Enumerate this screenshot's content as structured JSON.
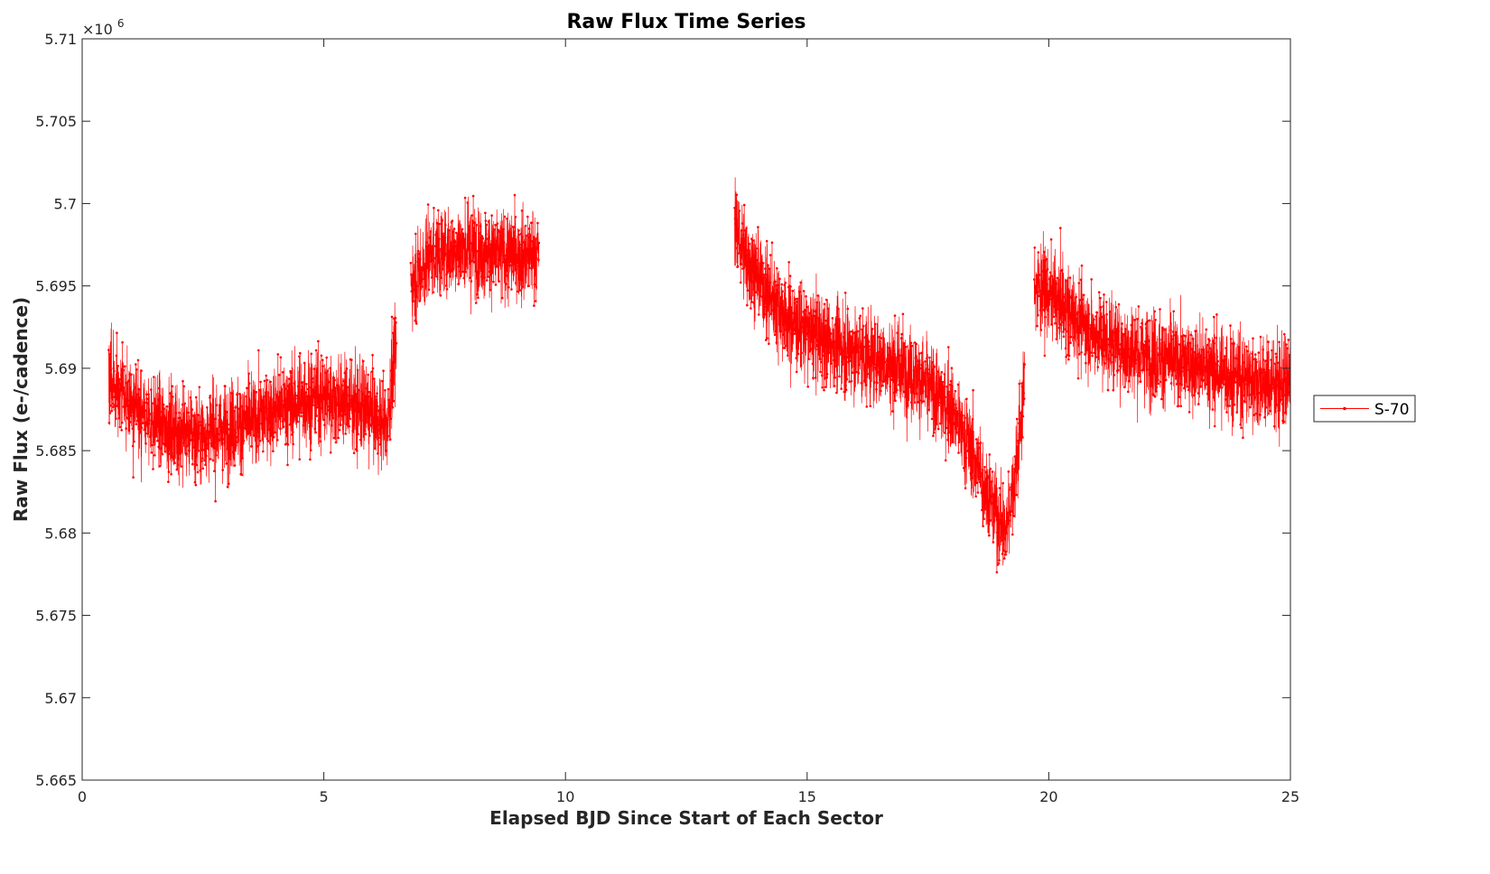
{
  "chart_data": {
    "type": "line",
    "title": "Raw Flux Time Series",
    "xlabel": "Elapsed BJD Since Start of Each Sector",
    "ylabel": "Raw Flux (e-/cadence)",
    "xlim": [
      0,
      25
    ],
    "ylim": [
      5665000,
      5710000
    ],
    "x_ticks": [
      0,
      5,
      10,
      15,
      20,
      25
    ],
    "y_ticks": [
      5665000,
      5670000,
      5675000,
      5680000,
      5685000,
      5690000,
      5695000,
      5700000,
      5705000,
      5710000
    ],
    "x_tick_labels": [
      "0",
      "5",
      "10",
      "15",
      "20",
      "25"
    ],
    "y_tick_labels": [
      "5.665",
      "5.67",
      "5.675",
      "5.68",
      "5.685",
      "5.69",
      "5.695",
      "5.7",
      "5.705",
      "5.71"
    ],
    "y_exponent_label": "×10",
    "y_exponent_power": "6",
    "grid": false,
    "legend_position": "right",
    "series": [
      {
        "name": "S-70",
        "color": "#ff0000",
        "marker": "point",
        "segments": [
          {
            "x": [
              0.55,
              0.8,
              1.2,
              1.6,
              2.0,
              2.5,
              3.0,
              3.5,
              4.0,
              4.5,
              5.0,
              5.5,
              6.0,
              6.3,
              6.5
            ],
            "y": [
              5689500,
              5688500,
              5687300,
              5686600,
              5686200,
              5686000,
              5686300,
              5686800,
              5687500,
              5688000,
              5688300,
              5688000,
              5687200,
              5686500,
              5691500
            ]
          },
          {
            "x": [
              6.8,
              7.2,
              7.6,
              8.0,
              8.4,
              8.8,
              9.2,
              9.45
            ],
            "y": [
              5695200,
              5696800,
              5697200,
              5697300,
              5697000,
              5696800,
              5696900,
              5697000
            ]
          },
          {
            "x": [
              13.5,
              13.8,
              14.2,
              14.6,
              15.0,
              15.5,
              16.0,
              16.5,
              17.0,
              17.5,
              18.0,
              18.4,
              18.8,
              19.1,
              19.3,
              19.5
            ],
            "y": [
              5698500,
              5696500,
              5694500,
              5693000,
              5692200,
              5691500,
              5691000,
              5690500,
              5690000,
              5689000,
              5687500,
              5685000,
              5682000,
              5680000,
              5683500,
              5689000
            ]
          },
          {
            "x": [
              19.7,
              20.0,
              20.5,
              21.0,
              21.5,
              22.0,
              22.5,
              23.0,
              23.5,
              24.0,
              24.5,
              25.0
            ],
            "y": [
              5695200,
              5694500,
              5693200,
              5692000,
              5691200,
              5690800,
              5690500,
              5690200,
              5689800,
              5689400,
              5689100,
              5689000
            ]
          }
        ],
        "noise_amplitude": 2300
      }
    ]
  }
}
